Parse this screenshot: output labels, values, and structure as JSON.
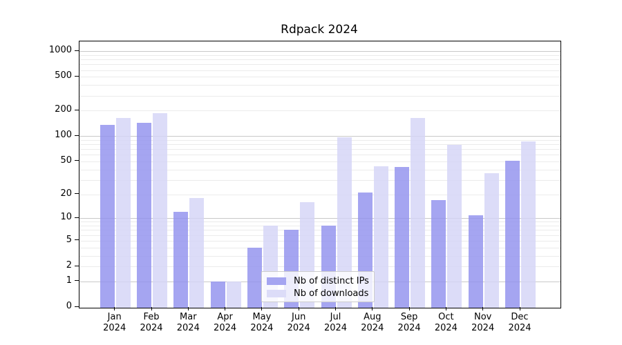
{
  "chart_data": {
    "type": "bar",
    "title": "Rdpack 2024",
    "xlabel": "",
    "ylabel": "",
    "yscale": "log1p",
    "ylim": [
      0,
      1300
    ],
    "yticks": [
      0,
      1,
      2,
      5,
      10,
      20,
      50,
      100,
      200,
      500,
      1000
    ],
    "categories": [
      {
        "month": "Jan",
        "year": "2024"
      },
      {
        "month": "Feb",
        "year": "2024"
      },
      {
        "month": "Mar",
        "year": "2024"
      },
      {
        "month": "Apr",
        "year": "2024"
      },
      {
        "month": "May",
        "year": "2024"
      },
      {
        "month": "Jun",
        "year": "2024"
      },
      {
        "month": "Jul",
        "year": "2024"
      },
      {
        "month": "Aug",
        "year": "2024"
      },
      {
        "month": "Sep",
        "year": "2024"
      },
      {
        "month": "Oct",
        "year": "2024"
      },
      {
        "month": "Nov",
        "year": "2024"
      },
      {
        "month": "Dec",
        "year": "2024"
      }
    ],
    "series": [
      {
        "name": "Nb of distinct IPs",
        "color": "#a5a5f1",
        "values": [
          135,
          143,
          12,
          1,
          4,
          7,
          8,
          21,
          43,
          17,
          11,
          51
        ]
      },
      {
        "name": "Nb of downloads",
        "color": "#dcdcf8",
        "values": [
          163,
          188,
          18,
          1,
          8,
          16,
          97,
          44,
          165,
          79,
          36,
          86
        ]
      }
    ],
    "grid": {
      "major": [
        1,
        10,
        100,
        1000
      ],
      "minor_per_decade": [
        2,
        3,
        4,
        5,
        6,
        7,
        8,
        9
      ],
      "major_color": "#c8c8c8",
      "minor_color": "#ebebeb"
    },
    "legend": {
      "position": "inside-bottom-center"
    }
  }
}
